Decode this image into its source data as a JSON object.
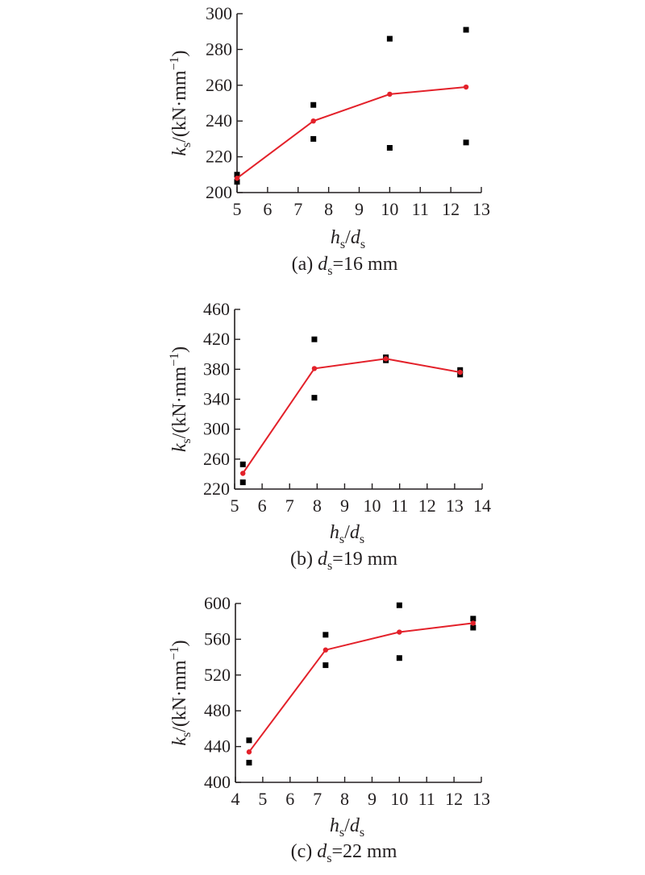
{
  "chart_data": [
    {
      "type": "scatter",
      "caption": {
        "prefix": "(a) ",
        "var": "d",
        "sub": "s",
        "suffix": "=16 mm"
      },
      "xlabel": {
        "var": "h",
        "sub": "s",
        "sep": "/",
        "var2": "d",
        "sub2": "s"
      },
      "ylabel": {
        "var": "k",
        "sub": "s",
        "unit": "/(kN·mm",
        "exp": "−1",
        "close": ")"
      },
      "xlim": [
        5,
        13
      ],
      "ylim": [
        200,
        300
      ],
      "xticks": [
        5,
        6,
        7,
        8,
        9,
        10,
        11,
        12,
        13
      ],
      "yticks": [
        200,
        220,
        240,
        260,
        280,
        300
      ],
      "series": [
        {
          "kind": "points",
          "color": "#000000",
          "points": [
            [
              5.0,
              206
            ],
            [
              5.0,
              210
            ],
            [
              7.5,
              230
            ],
            [
              7.5,
              249
            ],
            [
              10.0,
              225
            ],
            [
              10.0,
              286
            ],
            [
              12.5,
              228
            ],
            [
              12.5,
              291
            ]
          ]
        },
        {
          "kind": "line",
          "color": "#e3212a",
          "points": [
            [
              5.0,
              208
            ],
            [
              7.5,
              240
            ],
            [
              10.0,
              255
            ],
            [
              12.5,
              259
            ]
          ]
        }
      ]
    },
    {
      "type": "scatter",
      "caption": {
        "prefix": "(b) ",
        "var": "d",
        "sub": "s",
        "suffix": "=19 mm"
      },
      "xlabel": {
        "var": "h",
        "sub": "s",
        "sep": "/",
        "var2": "d",
        "sub2": "s"
      },
      "ylabel": {
        "var": "k",
        "sub": "s",
        "unit": "/(kN·mm",
        "exp": "−1",
        "close": ")"
      },
      "xlim": [
        5,
        14
      ],
      "ylim": [
        220,
        460
      ],
      "xticks": [
        5,
        6,
        7,
        8,
        9,
        10,
        11,
        12,
        13,
        14
      ],
      "yticks": [
        220,
        260,
        300,
        340,
        380,
        420,
        460
      ],
      "series": [
        {
          "kind": "points",
          "color": "#000000",
          "points": [
            [
              5.3,
              229
            ],
            [
              5.3,
              253
            ],
            [
              7.9,
              342
            ],
            [
              7.9,
              420
            ],
            [
              10.5,
              392
            ],
            [
              10.5,
              396
            ],
            [
              13.2,
              373
            ],
            [
              13.2,
              379
            ]
          ]
        },
        {
          "kind": "line",
          "color": "#e3212a",
          "points": [
            [
              5.3,
              241
            ],
            [
              7.9,
              381
            ],
            [
              10.5,
              394
            ],
            [
              13.2,
              376
            ]
          ]
        }
      ]
    },
    {
      "type": "scatter",
      "caption": {
        "prefix": "(c) ",
        "var": "d",
        "sub": "s",
        "suffix": "=22 mm"
      },
      "xlabel": {
        "var": "h",
        "sub": "s",
        "sep": "/",
        "var2": "d",
        "sub2": "s"
      },
      "ylabel": {
        "var": "k",
        "sub": "s",
        "unit": "/(kN·mm",
        "exp": "−1",
        "close": ")"
      },
      "xlim": [
        4,
        13
      ],
      "ylim": [
        400,
        600
      ],
      "xticks": [
        4,
        5,
        6,
        7,
        8,
        9,
        10,
        11,
        12,
        13
      ],
      "yticks": [
        400,
        440,
        480,
        520,
        560,
        600
      ],
      "series": [
        {
          "kind": "points",
          "color": "#000000",
          "points": [
            [
              4.5,
              422
            ],
            [
              4.5,
              447
            ],
            [
              7.3,
              531
            ],
            [
              7.3,
              565
            ],
            [
              10.0,
              539
            ],
            [
              10.0,
              598
            ],
            [
              12.7,
              573
            ],
            [
              12.7,
              583
            ]
          ]
        },
        {
          "kind": "line",
          "color": "#e3212a",
          "points": [
            [
              4.5,
              434
            ],
            [
              7.3,
              548
            ],
            [
              10.0,
              568
            ],
            [
              12.7,
              578
            ]
          ]
        }
      ]
    }
  ]
}
